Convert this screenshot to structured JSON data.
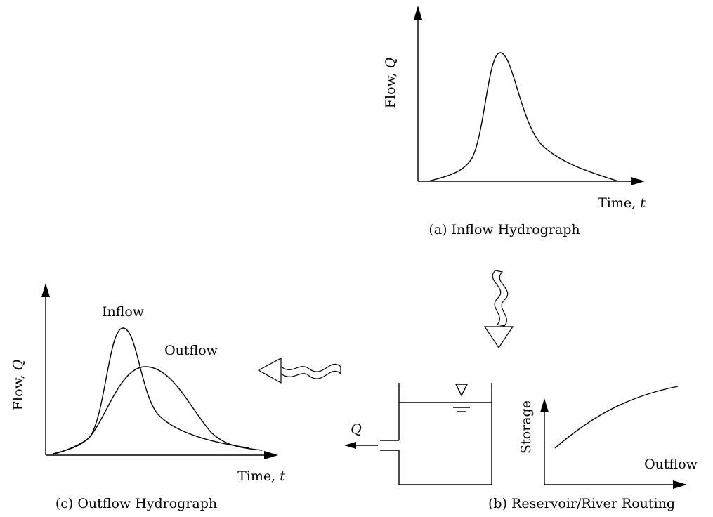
{
  "panels": [
    {
      "caption": "(a) Inflow Hydrograph",
      "y_label": {
        "text": "Flow,",
        "symbol": "Q"
      },
      "x_label": {
        "text": "Time,",
        "symbol": "t"
      }
    },
    {
      "caption": "(b) Reservoir/River Routing",
      "outlet_label": "Q",
      "y_label": "Storage",
      "x_label": "Outflow"
    },
    {
      "caption": "(c) Outflow Hydrograph",
      "y_label": {
        "text": "Flow,",
        "symbol": "Q"
      },
      "x_label": {
        "text": "Time,",
        "symbol": "t"
      },
      "curve_labels": [
        "Inflow",
        "Outflow"
      ]
    }
  ]
}
